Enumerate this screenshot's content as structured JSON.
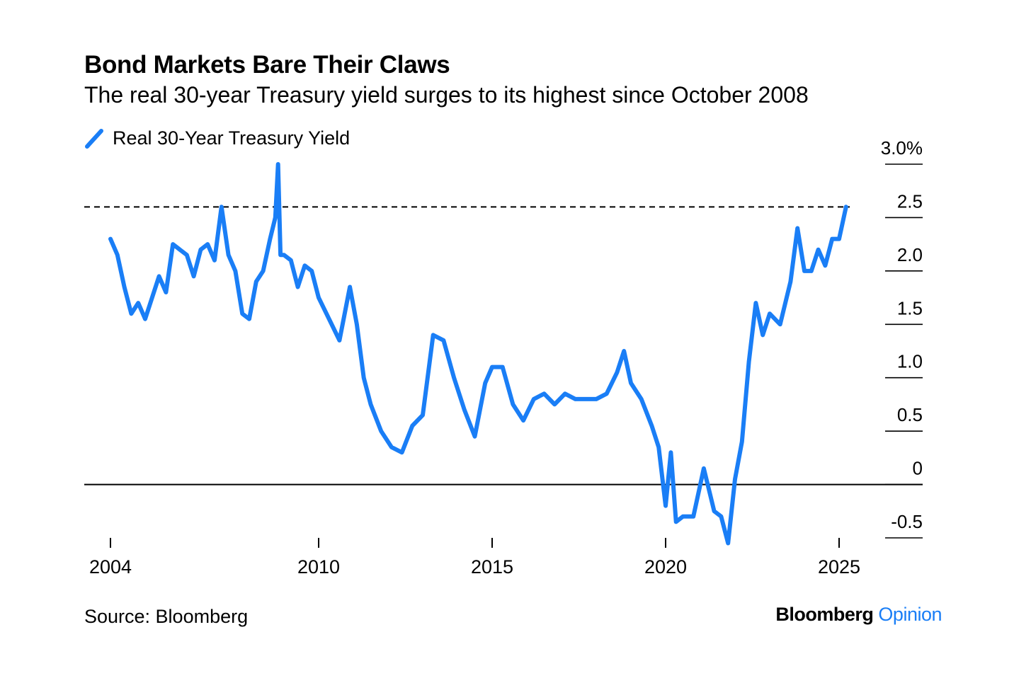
{
  "header": {
    "title": "Bond Markets Bare Their Claws",
    "subtitle": "The real 30-year Treasury yield surges to its highest since October 2008"
  },
  "footer": {
    "source": "Source: Bloomberg",
    "brand_main": "Bloomberg",
    "brand_accent": "Opinion"
  },
  "chart_data": {
    "type": "line",
    "title": "Bond Markets Bare Their Claws",
    "subtitle": "The real 30-year Treasury yield surges to its highest since October 2008",
    "legend": "top-left",
    "grid": false,
    "colors": {
      "series": "#1a7ef6",
      "reference": "#000000"
    },
    "xlim": [
      2003.7,
      2026.2
    ],
    "ylim": [
      -0.5,
      3.0
    ],
    "x_ticks": [
      {
        "value": 2004,
        "label": "2004"
      },
      {
        "value": 2010,
        "label": "2010"
      },
      {
        "value": 2015,
        "label": "2015"
      },
      {
        "value": 2020,
        "label": "2020"
      },
      {
        "value": 2025,
        "label": "2025"
      }
    ],
    "y_ticks": [
      {
        "value": 3.0,
        "label": "3.0%"
      },
      {
        "value": 2.5,
        "label": "2.5"
      },
      {
        "value": 2.0,
        "label": "2.0"
      },
      {
        "value": 1.5,
        "label": "1.5"
      },
      {
        "value": 1.0,
        "label": "1.0"
      },
      {
        "value": 0.5,
        "label": "0.5"
      },
      {
        "value": 0,
        "label": "0"
      },
      {
        "value": -0.5,
        "label": "-0.5"
      }
    ],
    "reference_lines": [
      {
        "y": 2.6,
        "style": "dashed"
      },
      {
        "y": 0,
        "style": "solid"
      }
    ],
    "series": [
      {
        "name": "Real 30-Year Treasury Yield",
        "x": [
          2004.0,
          2004.2,
          2004.4,
          2004.6,
          2004.8,
          2005.0,
          2005.2,
          2005.4,
          2005.6,
          2005.8,
          2006.0,
          2006.2,
          2006.4,
          2006.6,
          2006.8,
          2007.0,
          2007.2,
          2007.4,
          2007.6,
          2007.8,
          2008.0,
          2008.2,
          2008.4,
          2008.6,
          2008.75,
          2008.83,
          2008.9,
          2009.0,
          2009.2,
          2009.4,
          2009.6,
          2009.8,
          2010.0,
          2010.3,
          2010.6,
          2010.9,
          2011.1,
          2011.3,
          2011.5,
          2011.8,
          2012.1,
          2012.4,
          2012.7,
          2013.0,
          2013.3,
          2013.6,
          2013.9,
          2014.2,
          2014.5,
          2014.8,
          2015.0,
          2015.3,
          2015.6,
          2015.9,
          2016.2,
          2016.5,
          2016.8,
          2017.1,
          2017.4,
          2017.7,
          2018.0,
          2018.3,
          2018.6,
          2018.8,
          2019.0,
          2019.3,
          2019.6,
          2019.8,
          2020.0,
          2020.15,
          2020.3,
          2020.5,
          2020.8,
          2021.1,
          2021.4,
          2021.6,
          2021.8,
          2022.0,
          2022.2,
          2022.4,
          2022.6,
          2022.8,
          2023.0,
          2023.3,
          2023.6,
          2023.8,
          2024.0,
          2024.2,
          2024.4,
          2024.6,
          2024.8,
          2025.0,
          2025.2
        ],
        "y": [
          2.3,
          2.15,
          1.85,
          1.6,
          1.7,
          1.55,
          1.75,
          1.95,
          1.8,
          2.25,
          2.2,
          2.15,
          1.95,
          2.2,
          2.25,
          2.1,
          2.6,
          2.15,
          2.0,
          1.6,
          1.55,
          1.9,
          2.0,
          2.3,
          2.5,
          3.0,
          2.15,
          2.15,
          2.1,
          1.85,
          2.05,
          2.0,
          1.75,
          1.55,
          1.35,
          1.85,
          1.5,
          1.0,
          0.75,
          0.5,
          0.35,
          0.3,
          0.55,
          0.65,
          1.4,
          1.35,
          1.0,
          0.7,
          0.45,
          0.95,
          1.1,
          1.1,
          0.75,
          0.6,
          0.8,
          0.85,
          0.75,
          0.85,
          0.8,
          0.8,
          0.8,
          0.85,
          1.05,
          1.25,
          0.95,
          0.8,
          0.55,
          0.35,
          -0.2,
          0.3,
          -0.35,
          -0.3,
          -0.3,
          0.15,
          -0.25,
          -0.3,
          -0.55,
          0.05,
          0.4,
          1.15,
          1.7,
          1.4,
          1.6,
          1.5,
          1.9,
          2.4,
          2.0,
          2.0,
          2.2,
          2.05,
          2.3,
          2.3,
          2.6
        ]
      }
    ]
  }
}
